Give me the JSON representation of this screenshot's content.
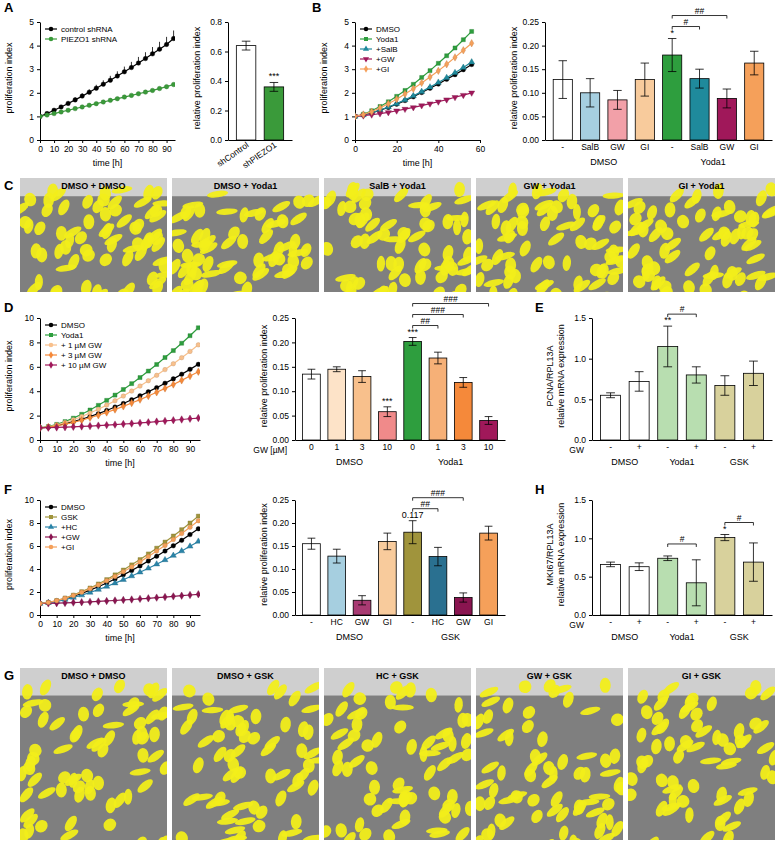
{
  "chart_data": [
    {
      "type": "line",
      "panel": "A",
      "x_label": "time [h]",
      "y_label": [
        "proliferation index"
      ],
      "xlim": [
        0,
        96
      ],
      "xticks": [
        0,
        10,
        20,
        30,
        40,
        50,
        60,
        70,
        80,
        90
      ],
      "ylim": [
        0,
        5
      ],
      "yticks": [
        0,
        1,
        2,
        3,
        4,
        5
      ],
      "legend": "top-left",
      "x": [
        0,
        5,
        10,
        15,
        20,
        25,
        30,
        35,
        40,
        45,
        50,
        55,
        60,
        65,
        70,
        75,
        80,
        85,
        90,
        95
      ],
      "series": [
        {
          "name": "control shRNA",
          "color": "#000000",
          "marker": "circle",
          "values": [
            1,
            1.12,
            1.26,
            1.4,
            1.55,
            1.7,
            1.86,
            2.02,
            2.19,
            2.36,
            2.53,
            2.71,
            2.89,
            3.07,
            3.26,
            3.45,
            3.65,
            3.85,
            4.05,
            4.3
          ],
          "errors": [
            0,
            0.03,
            0.05,
            0.07,
            0.09,
            0.1,
            0.12,
            0.13,
            0.15,
            0.17,
            0.19,
            0.2,
            0.22,
            0.24,
            0.26,
            0.27,
            0.29,
            0.31,
            0.32,
            0.34
          ]
        },
        {
          "name": "PIEZO1 shRNA",
          "color": "#3a9a3a",
          "marker": "circle",
          "values": [
            1,
            1.06,
            1.12,
            1.19,
            1.26,
            1.33,
            1.4,
            1.47,
            1.54,
            1.61,
            1.68,
            1.75,
            1.82,
            1.89,
            1.96,
            2.03,
            2.1,
            2.18,
            2.26,
            2.35
          ]
        }
      ]
    },
    {
      "type": "bar",
      "y_label": [
        "relative proliferation index"
      ],
      "categories": [
        "shControl",
        "shPIEZO1"
      ],
      "values": [
        0.64,
        0.36
      ],
      "errors": [
        0.03,
        0.03
      ],
      "colors": [
        "#ffffff",
        "#3a9a3a"
      ],
      "ylim": [
        0,
        0.8
      ],
      "yticks": [
        {
          "value": 0,
          "label": "0.0"
        },
        0.2,
        0.4,
        0.6,
        0.8
      ],
      "stars": [
        {
          "index": 1,
          "label": "***"
        }
      ]
    },
    {
      "type": "line",
      "panel": "B",
      "x_label": "time [h]",
      "y_label": [
        "proliferation index"
      ],
      "xlim": [
        0,
        60
      ],
      "xticks": [
        0,
        20,
        40,
        60
      ],
      "ylim": [
        0,
        5
      ],
      "yticks": [
        0,
        1,
        2,
        3,
        4,
        5
      ],
      "legend": "top-left",
      "x": [
        0,
        4,
        8,
        12,
        16,
        20,
        24,
        28,
        32,
        36,
        40,
        44,
        48,
        52,
        56
      ],
      "series": [
        {
          "name": "DMSO",
          "color": "#000000",
          "marker": "circle",
          "values": [
            1,
            1.06,
            1.15,
            1.26,
            1.38,
            1.52,
            1.67,
            1.83,
            2.01,
            2.19,
            2.37,
            2.57,
            2.77,
            2.98,
            3.2
          ]
        },
        {
          "name": "Yoda1",
          "color": "#2e9e3e",
          "marker": "square",
          "values": [
            1,
            1.09,
            1.24,
            1.42,
            1.62,
            1.85,
            2.1,
            2.36,
            2.65,
            2.94,
            3.25,
            3.57,
            3.9,
            4.25,
            4.6
          ]
        },
        {
          "name": "+SalB",
          "color": "#1f8a9c",
          "marker": "triangle",
          "values": [
            1,
            1.06,
            1.15,
            1.27,
            1.4,
            1.54,
            1.7,
            1.87,
            2.05,
            2.24,
            2.44,
            2.64,
            2.85,
            3.07,
            3.3
          ]
        },
        {
          "name": "+GW",
          "color": "#a0185a",
          "marker": "triangle-down",
          "values": [
            1,
            1.03,
            1.07,
            1.12,
            1.17,
            1.24,
            1.31,
            1.38,
            1.46,
            1.54,
            1.62,
            1.71,
            1.81,
            1.9,
            2.0
          ]
        },
        {
          "name": "+GI",
          "color": "#f5a05a",
          "marker": "diamond",
          "values": [
            1,
            1.08,
            1.2,
            1.36,
            1.54,
            1.73,
            1.95,
            2.17,
            2.42,
            2.67,
            2.93,
            3.21,
            3.5,
            3.8,
            4.1
          ]
        }
      ]
    },
    {
      "type": "bar",
      "y_label": [
        "relative proliferation index"
      ],
      "categories": [
        "-",
        "SalB",
        "GW",
        "GI",
        "-",
        "SalB",
        "GW",
        "GI"
      ],
      "values": [
        0.128,
        0.1,
        0.085,
        0.128,
        0.18,
        0.13,
        0.088,
        0.163
      ],
      "errors": [
        0.04,
        0.03,
        0.02,
        0.035,
        0.035,
        0.02,
        0.02,
        0.025
      ],
      "colors": [
        "#ffffff",
        "#a6cfe0",
        "#f2a0a8",
        "#f8cb9c",
        "#2e9e3e",
        "#1f8a9c",
        "#a0185a",
        "#f5a05a"
      ],
      "ylim": [
        0,
        0.25
      ],
      "yticks": [
        {
          "value": 0,
          "label": "0.00"
        },
        0.05,
        {
          "value": 0.1,
          "label": "0.10"
        },
        0.15,
        {
          "value": 0.2,
          "label": "0.20"
        },
        0.25
      ],
      "groups": [
        {
          "label": "DMSO",
          "from": 0,
          "to": 3
        },
        {
          "label": "Yoda1",
          "from": 4,
          "to": 7
        }
      ],
      "stars": [
        {
          "index": 4,
          "label": "*"
        }
      ],
      "brackets": [
        {
          "from": 4,
          "to": 5,
          "label": "#"
        },
        {
          "from": 4,
          "to": 6,
          "label": "##"
        }
      ]
    },
    {
      "type": "image",
      "panel": "C",
      "labels": [
        "DMSO + DMSO",
        "DMSO + Yoda1",
        "SalB + Yoda1",
        "GW + Yoda1",
        "GI + Yoda1"
      ]
    },
    {
      "type": "line",
      "panel": "D",
      "x_label": "time [h]",
      "y_label": [
        "proliferation index"
      ],
      "xlim": [
        0,
        96
      ],
      "xticks": [
        0,
        10,
        20,
        30,
        40,
        50,
        60,
        70,
        80,
        90
      ],
      "ylim": [
        0,
        10
      ],
      "yticks": [
        0,
        2,
        4,
        6,
        8,
        10
      ],
      "legend": "top-left",
      "x": [
        0,
        5,
        10,
        15,
        20,
        25,
        30,
        35,
        40,
        45,
        50,
        55,
        60,
        65,
        70,
        75,
        80,
        85,
        90,
        95
      ],
      "series": [
        {
          "name": "DMSO",
          "color": "#000000",
          "marker": "circle",
          "values": [
            1,
            1.06,
            1.18,
            1.33,
            1.5,
            1.7,
            1.93,
            2.16,
            2.42,
            2.7,
            2.99,
            3.3,
            3.62,
            3.95,
            4.29,
            4.65,
            5.01,
            5.39,
            5.79,
            6.2
          ]
        },
        {
          "name": "Yoda1",
          "color": "#2e9e3e",
          "marker": "square",
          "values": [
            1,
            1.1,
            1.28,
            1.51,
            1.79,
            2.11,
            2.46,
            2.84,
            3.25,
            3.68,
            4.14,
            4.62,
            5.12,
            5.65,
            6.19,
            6.76,
            7.33,
            7.93,
            8.55,
            9.2
          ]
        },
        {
          "name": "+ 1 µM GW",
          "color": "#f8c08c",
          "marker": "circle",
          "values": [
            1,
            1.08,
            1.23,
            1.43,
            1.66,
            1.92,
            2.21,
            2.52,
            2.86,
            3.22,
            3.6,
            4.01,
            4.42,
            4.86,
            5.3,
            5.77,
            6.25,
            6.75,
            7.26,
            7.8
          ]
        },
        {
          "name": "+ 3 µM GW",
          "color": "#f5893a",
          "marker": "diamond",
          "values": [
            1,
            1.06,
            1.16,
            1.29,
            1.44,
            1.62,
            1.82,
            2.03,
            2.26,
            2.5,
            2.76,
            3.03,
            3.31,
            3.61,
            3.91,
            4.23,
            4.55,
            4.89,
            5.24,
            5.6
          ]
        },
        {
          "name": "+ 10 µM GW",
          "color": "#a0185a",
          "marker": "diamond",
          "values": [
            1,
            1.01,
            1.03,
            1.05,
            1.08,
            1.11,
            1.14,
            1.18,
            1.22,
            1.26,
            1.31,
            1.35,
            1.4,
            1.45,
            1.51,
            1.56,
            1.62,
            1.68,
            1.74,
            1.8
          ]
        }
      ]
    },
    {
      "type": "bar",
      "y_label": [
        "relative proliferation index"
      ],
      "x_label": "GW [µM]",
      "categories": [
        "0",
        "1",
        "3",
        "10",
        "0",
        "1",
        "3",
        "10"
      ],
      "values": [
        0.135,
        0.145,
        0.13,
        0.058,
        0.202,
        0.168,
        0.118,
        0.04
      ],
      "errors": [
        0.01,
        0.005,
        0.012,
        0.01,
        0.008,
        0.012,
        0.01,
        0.008
      ],
      "colors": [
        "#ffffff",
        "#fde3c8",
        "#f8c08c",
        "#f08a8a",
        "#2e9e3e",
        "#f6b077",
        "#f5893a",
        "#a0185a"
      ],
      "ylim": [
        0,
        0.25
      ],
      "yticks": [
        {
          "value": 0,
          "label": "0.00"
        },
        0.05,
        {
          "value": 0.1,
          "label": "0.10"
        },
        0.15,
        {
          "value": 0.2,
          "label": "0.20"
        },
        0.25
      ],
      "groups": [
        {
          "label": "DMSO",
          "from": 0,
          "to": 3
        },
        {
          "label": "Yoda1",
          "from": 4,
          "to": 7
        }
      ],
      "stars": [
        {
          "index": 3,
          "label": "***"
        },
        {
          "index": 4,
          "label": "***"
        }
      ],
      "brackets": [
        {
          "from": 4,
          "to": 5,
          "label": "##"
        },
        {
          "from": 4,
          "to": 6,
          "label": "###"
        },
        {
          "from": 4,
          "to": 7,
          "label": "###"
        }
      ]
    },
    {
      "type": "bar",
      "panel": "E",
      "y_label": [
        "PCNA/RPL13A",
        "relative mRNA expression"
      ],
      "x_label": "GW",
      "categories": [
        "-",
        "+",
        "-",
        "+",
        "-",
        "+"
      ],
      "values": [
        0.55,
        0.72,
        1.15,
        0.8,
        0.67,
        0.82
      ],
      "errors": [
        0.03,
        0.12,
        0.25,
        0.1,
        0.12,
        0.15
      ],
      "colors": [
        "#ffffff",
        "#ffffff",
        "#b8deb0",
        "#b8deb0",
        "#d8d19c",
        "#d8d19c"
      ],
      "ylim": [
        0,
        1.5
      ],
      "yticks": [
        {
          "value": 0,
          "label": "0.0"
        },
        0.5,
        {
          "value": 1,
          "label": "1.0"
        },
        1.5
      ],
      "groups": [
        {
          "label": "DMSO",
          "from": 0,
          "to": 1
        },
        {
          "label": "Yoda1",
          "from": 2,
          "to": 3
        },
        {
          "label": "GSK",
          "from": 4,
          "to": 5
        }
      ],
      "stars": [
        {
          "index": 2,
          "label": "**"
        }
      ],
      "brackets": [
        {
          "from": 2,
          "to": 3,
          "label": "#"
        }
      ]
    },
    {
      "type": "line",
      "panel": "F",
      "x_label": "time [h]",
      "y_label": [
        "proliferation index"
      ],
      "xlim": [
        0,
        96
      ],
      "xticks": [
        0,
        10,
        20,
        30,
        40,
        50,
        60,
        70,
        80,
        90
      ],
      "ylim": [
        0,
        10
      ],
      "yticks": [
        0,
        2,
        4,
        6,
        8,
        10
      ],
      "legend": "top-left",
      "x": [
        0,
        5,
        10,
        15,
        20,
        25,
        30,
        35,
        40,
        45,
        50,
        55,
        60,
        65,
        70,
        75,
        80,
        85,
        90,
        95
      ],
      "series": [
        {
          "name": "DMSO",
          "color": "#000000",
          "marker": "circle",
          "values": [
            1,
            1.08,
            1.22,
            1.41,
            1.63,
            1.88,
            2.16,
            2.46,
            2.78,
            3.13,
            3.49,
            3.87,
            4.27,
            4.69,
            5.11,
            5.56,
            6.02,
            6.49,
            6.99,
            7.5
          ]
        },
        {
          "name": "GSK",
          "color": "#a0943c",
          "marker": "square",
          "values": [
            1,
            1.09,
            1.26,
            1.48,
            1.73,
            2.03,
            2.35,
            2.7,
            3.08,
            3.49,
            3.91,
            4.36,
            4.82,
            5.31,
            5.81,
            6.34,
            6.87,
            7.42,
            8.0,
            8.6
          ]
        },
        {
          "name": "+HC",
          "color": "#2a84a8",
          "marker": "triangle",
          "values": [
            1,
            1.07,
            1.18,
            1.34,
            1.52,
            1.73,
            1.96,
            2.21,
            2.48,
            2.77,
            3.07,
            3.39,
            3.72,
            4.06,
            4.42,
            4.79,
            5.17,
            5.56,
            5.97,
            6.4
          ]
        },
        {
          "name": "+GW",
          "color": "#8a1550",
          "marker": "diamond",
          "values": [
            1,
            1.01,
            1.03,
            1.05,
            1.08,
            1.11,
            1.14,
            1.18,
            1.22,
            1.26,
            1.31,
            1.35,
            1.4,
            1.45,
            1.51,
            1.56,
            1.62,
            1.68,
            1.74,
            1.8
          ]
        },
        {
          "name": "+GI",
          "color": "#f5a05a",
          "marker": "circle",
          "values": [
            1,
            1.09,
            1.25,
            1.45,
            1.7,
            1.97,
            2.28,
            2.61,
            2.97,
            3.35,
            3.76,
            4.18,
            4.62,
            5.08,
            5.56,
            6.05,
            6.56,
            7.08,
            7.63,
            8.2
          ]
        }
      ]
    },
    {
      "type": "bar",
      "y_label": [
        "relative proliferation index"
      ],
      "categories": [
        "-",
        "HC",
        "GW",
        "GI",
        "-",
        "HC",
        "GW",
        "GI"
      ],
      "values": [
        0.155,
        0.128,
        0.032,
        0.16,
        0.18,
        0.127,
        0.038,
        0.178
      ],
      "errors": [
        0.012,
        0.015,
        0.01,
        0.018,
        0.025,
        0.02,
        0.01,
        0.015
      ],
      "colors": [
        "#ffffff",
        "#a6cfe0",
        "#a83a72",
        "#f8cb9c",
        "#a0943c",
        "#2a7090",
        "#8a1550",
        "#f5a05a"
      ],
      "ylim": [
        0,
        0.25
      ],
      "yticks": [
        {
          "value": 0,
          "label": "0.00"
        },
        0.05,
        {
          "value": 0.1,
          "label": "0.10"
        },
        0.15,
        {
          "value": 0.2,
          "label": "0.20"
        },
        0.25
      ],
      "groups": [
        {
          "label": "DMSO",
          "from": 0,
          "to": 3
        },
        {
          "label": "GSK",
          "from": 4,
          "to": 7
        }
      ],
      "stars": [
        {
          "index": 4,
          "label": "0.117"
        }
      ],
      "brackets": [
        {
          "from": 4,
          "to": 5,
          "label": "##"
        },
        {
          "from": 4,
          "to": 6,
          "label": "###"
        }
      ]
    },
    {
      "type": "image",
      "panel": "G",
      "labels": [
        "DMSO + DMSO",
        "DMSO + GSK",
        "HC + GSK",
        "GW + GSK",
        "GI + GSK"
      ]
    },
    {
      "type": "bar",
      "panel": "H",
      "y_label": [
        "MKI67/RPL13A",
        "relative mRNA expression"
      ],
      "x_label": "GW",
      "categories": [
        "-",
        "+",
        "-",
        "+",
        "-",
        "+"
      ],
      "values": [
        0.66,
        0.63,
        0.74,
        0.42,
        1.01,
        0.69
      ],
      "errors": [
        0.03,
        0.05,
        0.03,
        0.3,
        0.04,
        0.25
      ],
      "colors": [
        "#ffffff",
        "#ffffff",
        "#b8deb0",
        "#b8deb0",
        "#d8d19c",
        "#d8d19c"
      ],
      "ylim": [
        0,
        1.5
      ],
      "yticks": [
        {
          "value": 0,
          "label": "0.0"
        },
        0.5,
        {
          "value": 1,
          "label": "1.0"
        },
        1.5
      ],
      "groups": [
        {
          "label": "DMSO",
          "from": 0,
          "to": 1
        },
        {
          "label": "Yoda1",
          "from": 2,
          "to": 3
        },
        {
          "label": "GSK",
          "from": 4,
          "to": 5
        }
      ],
      "stars": [
        {
          "index": 4,
          "label": "*"
        }
      ],
      "brackets": [
        {
          "from": 2,
          "to": 3,
          "label": "#"
        },
        {
          "from": 4,
          "to": 5,
          "label": "#"
        }
      ]
    }
  ]
}
